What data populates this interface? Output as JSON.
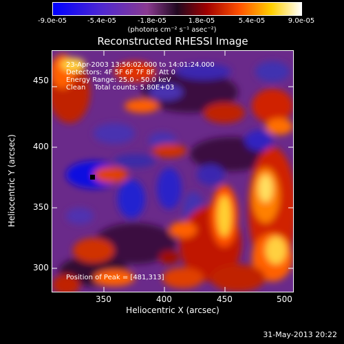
{
  "colorbar": {
    "ticks": [
      "-9.0e-05",
      "-5.4e-05",
      "-1.8e-05",
      "1.8e-05",
      "5.4e-05",
      "9.0e-05"
    ],
    "units": "(photons cm⁻² s⁻¹ asec⁻²)",
    "colors": [
      "#0000ff",
      "#5028d0",
      "#8a3a90",
      "#2a0a2a",
      "#a00000",
      "#ff5000",
      "#ffd000",
      "#ffffff"
    ]
  },
  "title": "Reconstructed RHESSI Image",
  "info": {
    "line1": "23-Apr-2003 13:56:02.000 to 14:01:24.000",
    "line2": "Detectors: 4F 5F 6F 7F 8F, Att 0",
    "line3": "Energy Range: 25.0 - 50.0 keV",
    "line4": "Clean    Total counts: 5.80E+03",
    "peak": "Position of Peak = [481,313]"
  },
  "axes": {
    "xlabel": "Heliocentric X (arcsec)",
    "ylabel": "Heliocentric Y (arcsec)",
    "xticks": [
      "350",
      "400",
      "450",
      "500"
    ],
    "yticks": [
      "300",
      "350",
      "400",
      "450"
    ],
    "xlim": [
      308,
      500
    ],
    "ylim": [
      290,
      482
    ]
  },
  "footer": "31-May-2013 20:22"
}
